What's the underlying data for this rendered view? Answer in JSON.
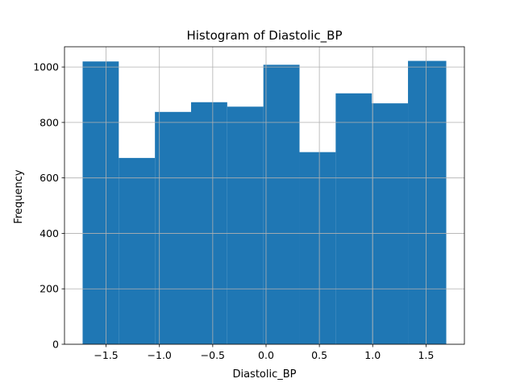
{
  "chart_data": {
    "type": "bar",
    "title": "Histogram of Diastolic_BP",
    "xlabel": "Diastolic_BP",
    "ylabel": "Frequency",
    "bin_edges": [
      -1.72,
      -1.381,
      -1.042,
      -0.703,
      -0.364,
      -0.025,
      0.314,
      0.653,
      0.992,
      1.331,
      1.69
    ],
    "values": [
      1020,
      672,
      838,
      873,
      857,
      1008,
      693,
      905,
      869,
      1022
    ],
    "xlim": [
      -1.89,
      1.86
    ],
    "ylim": [
      0,
      1073
    ],
    "xticks": [
      -1.5,
      -1.0,
      -0.5,
      0.0,
      0.5,
      1.0,
      1.5
    ],
    "xtick_labels": [
      "−1.5",
      "−1.0",
      "−0.5",
      "0.0",
      "0.5",
      "1.0",
      "1.5"
    ],
    "yticks": [
      0,
      200,
      400,
      600,
      800,
      1000
    ],
    "ytick_labels": [
      "0",
      "200",
      "400",
      "600",
      "800",
      "1000"
    ],
    "grid": true,
    "colors": {
      "bar": "#1f77b4",
      "grid": "#b0b0b0",
      "axis": "#000000"
    }
  }
}
